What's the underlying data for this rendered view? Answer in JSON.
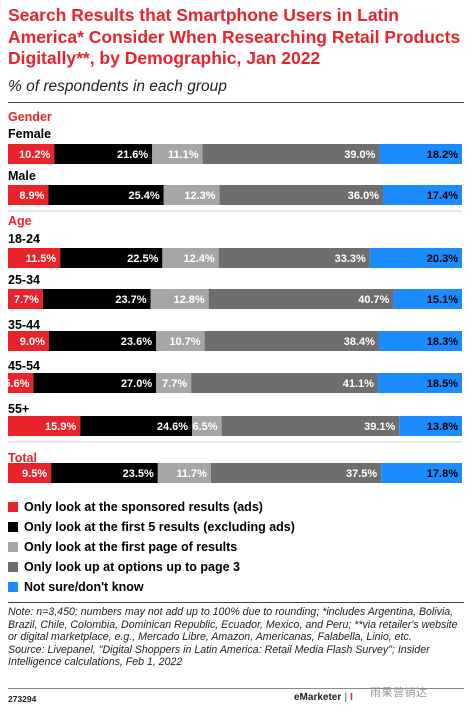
{
  "header": {
    "title": "Search Results that Smartphone Users in Latin America* Consider When Researching Retail Products Digitally**, by Demographic, Jan 2022",
    "subtitle": "% of respondents in each group"
  },
  "colors": {
    "accent": "#e8232b",
    "series": [
      "#e8232b",
      "#000000",
      "#a6a6a6",
      "#6e6e6e",
      "#1a8cff"
    ]
  },
  "chart_data": {
    "type": "bar",
    "orientation": "horizontal",
    "stacked": true,
    "grid": false,
    "legend_position": "bottom",
    "series": [
      {
        "name": "Only look at the sponsored results (ads)",
        "color": "#e8232b"
      },
      {
        "name": "Only look at the first 5 results (excluding ads)",
        "color": "#000000"
      },
      {
        "name": "Only look at the first page of results",
        "color": "#a6a6a6"
      },
      {
        "name": "Only look up at options up to page 3",
        "color": "#6e6e6e"
      },
      {
        "name": "Not sure/don't know",
        "color": "#1a8cff"
      }
    ],
    "groups": [
      {
        "name": "Gender",
        "rows": [
          {
            "label": "Female",
            "values": [
              10.2,
              21.6,
              11.1,
              39.0,
              18.2
            ],
            "labels": [
              "10.2%",
              "21.6%",
              "11.1%",
              "39.0%",
              "18.2%"
            ]
          },
          {
            "label": "Male",
            "values": [
              8.9,
              25.4,
              12.3,
              36.0,
              17.4
            ],
            "labels": [
              "8.9%",
              "25.4%",
              "12.3%",
              "36.0%",
              "17.4%"
            ]
          }
        ]
      },
      {
        "name": "Age",
        "rows": [
          {
            "label": "18-24",
            "values": [
              11.5,
              22.5,
              12.4,
              33.3,
              20.3
            ],
            "labels": [
              "11.5%",
              "22.5%",
              "12.4%",
              "33.3%",
              "20.3%"
            ]
          },
          {
            "label": "25-34",
            "values": [
              7.7,
              23.7,
              12.8,
              40.7,
              15.1
            ],
            "labels": [
              "7.7%",
              "23.7%",
              "12.8%",
              "40.7%",
              "15.1%"
            ]
          },
          {
            "label": "35-44",
            "values": [
              9.0,
              23.6,
              10.7,
              38.4,
              18.3
            ],
            "labels": [
              "9.0%",
              "23.6%",
              "10.7%",
              "38.4%",
              "18.3%"
            ]
          },
          {
            "label": "45-54",
            "values": [
              5.6,
              27.0,
              7.7,
              41.1,
              18.5
            ],
            "labels": [
              "5.6%",
              "27.0%",
              "7.7%",
              "41.1%",
              "18.5%"
            ]
          },
          {
            "label": "55+",
            "values": [
              15.9,
              24.6,
              6.5,
              39.1,
              13.8
            ],
            "labels": [
              "15.9%",
              "24.6%",
              "6.5%",
              "39.1%",
              "13.8%"
            ]
          }
        ]
      },
      {
        "name": "Total",
        "rows": [
          {
            "label": "",
            "values": [
              9.5,
              23.5,
              11.7,
              37.5,
              17.8
            ],
            "labels": [
              "9.5%",
              "23.5%",
              "11.7%",
              "37.5%",
              "17.8%"
            ]
          }
        ]
      }
    ]
  },
  "note": "Note: n=3,450; numbers may not add up to 100% due to rounding; *includes Argentina, Bolivia, Brazil, Chile, Colombia, Dominican Republic, Ecuador, Mexico, and Peru; **via retailer's website or digital marketplace, e.g., Mercado Libre, Amazon, Americanas, Falabella, Linio, etc.",
  "source": "Source: Livepanel, \"Digital Shoppers in Latin America: Retail Media Flash Survey\"; Insider Intelligence calculations, Feb 1, 2022",
  "footer": {
    "chart_id": "273294",
    "brand": "eMarketer",
    "brand2": "I",
    "watermark": "雨果营销达"
  }
}
